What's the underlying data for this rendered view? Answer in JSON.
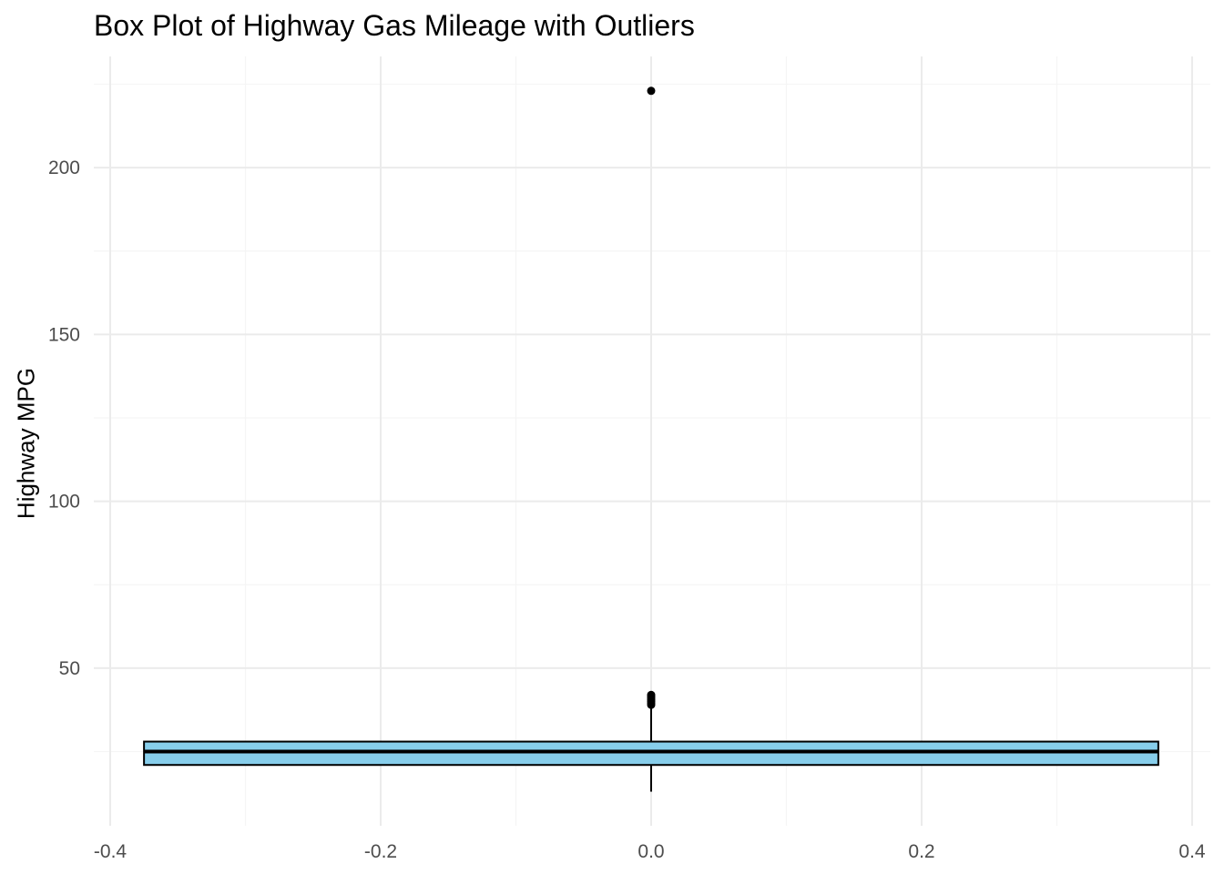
{
  "chart_data": {
    "type": "box",
    "title": "Box Plot of Highway Gas Mileage with Outliers",
    "xlabel": "",
    "ylabel": "Highway MPG",
    "xlim": [
      -0.4,
      0.4
    ],
    "ylim": [
      8,
      230
    ],
    "x_ticks": [
      -0.4,
      -0.2,
      0.0,
      0.2,
      0.4
    ],
    "x_tick_labels": [
      "-0.4",
      "-0.2",
      "0.0",
      "0.2",
      "0.4"
    ],
    "y_ticks": [
      50,
      100,
      150,
      200
    ],
    "y_tick_labels": [
      "50",
      "100",
      "150",
      "200"
    ],
    "grid": true,
    "legend": "none",
    "box": {
      "x_center": 0.0,
      "x_left": -0.375,
      "x_right": 0.375,
      "whisker_low": 13,
      "q1": 21,
      "median": 25,
      "q3": 28,
      "whisker_high": 38,
      "outliers": [
        39,
        39.5,
        40,
        40.5,
        41,
        41.5,
        42,
        223
      ]
    },
    "colors": {
      "box_fill": "#87CEEB",
      "box_stroke": "#000000",
      "grid_major": "#EBEBEB",
      "grid_minor": "#F5F5F5",
      "tick_text": "#4D4D4D",
      "outlier": "#000000"
    }
  }
}
